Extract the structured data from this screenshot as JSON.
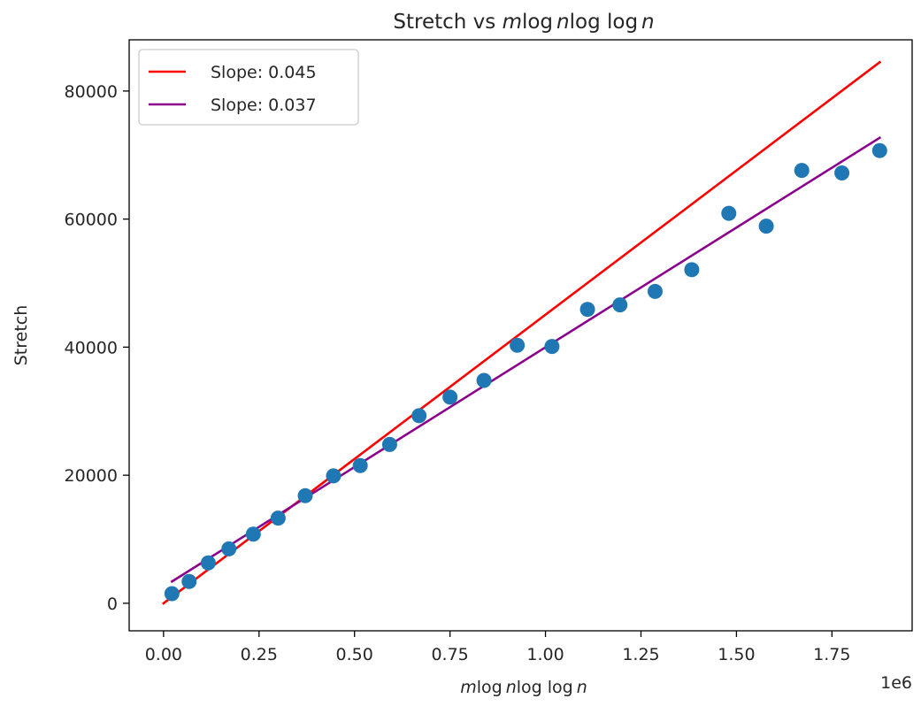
{
  "chart_data": {
    "type": "scatter",
    "title": {
      "prefix": "Stretch vs ",
      "m": "m",
      "log1": "log",
      "n1": "n",
      "log2": "log log",
      "n2": "n"
    },
    "xlabel": {
      "m": "m",
      "log1": "log",
      "n1": "n",
      "log2": "log log",
      "n2": "n"
    },
    "ylabel": "Stretch",
    "x_offset_label": "1e6",
    "xlim": [
      -0.09,
      1.96
    ],
    "ylim": [
      -4300,
      88000
    ],
    "x_scale_factor": 1000000,
    "x_ticks": [
      0.0,
      0.25,
      0.5,
      0.75,
      1.0,
      1.25,
      1.5,
      1.75
    ],
    "x_tick_labels": [
      "0.00",
      "0.25",
      "0.50",
      "0.75",
      "1.00",
      "1.25",
      "1.50",
      "1.75"
    ],
    "y_ticks": [
      0,
      20000,
      40000,
      60000,
      80000
    ],
    "y_tick_labels": [
      "0",
      "20000",
      "40000",
      "60000",
      "80000"
    ],
    "grid": false,
    "legend_position": "top-left",
    "point_color": "#1f77b4",
    "points": {
      "x": [
        0.022,
        0.067,
        0.117,
        0.171,
        0.235,
        0.3,
        0.371,
        0.445,
        0.515,
        0.592,
        0.669,
        0.75,
        0.839,
        0.926,
        1.017,
        1.11,
        1.195,
        1.287,
        1.383,
        1.48,
        1.578,
        1.671,
        1.776,
        1.875
      ],
      "y": [
        1500,
        3400,
        6300,
        8500,
        10800,
        13300,
        16800,
        19900,
        21500,
        24800,
        29300,
        32200,
        34800,
        40300,
        40100,
        45900,
        46600,
        48700,
        52100,
        60900,
        58900,
        67600,
        67200,
        70700
      ]
    },
    "lines": [
      {
        "name": "Slope: 0.045",
        "color": "#ff0000",
        "x": [
          0.0,
          1.875
        ],
        "y": [
          0,
          84500
        ]
      },
      {
        "name": "Slope: 0.037",
        "color": "#8b008b",
        "x": [
          0.022,
          1.875
        ],
        "y": [
          3400,
          72700
        ]
      }
    ]
  }
}
